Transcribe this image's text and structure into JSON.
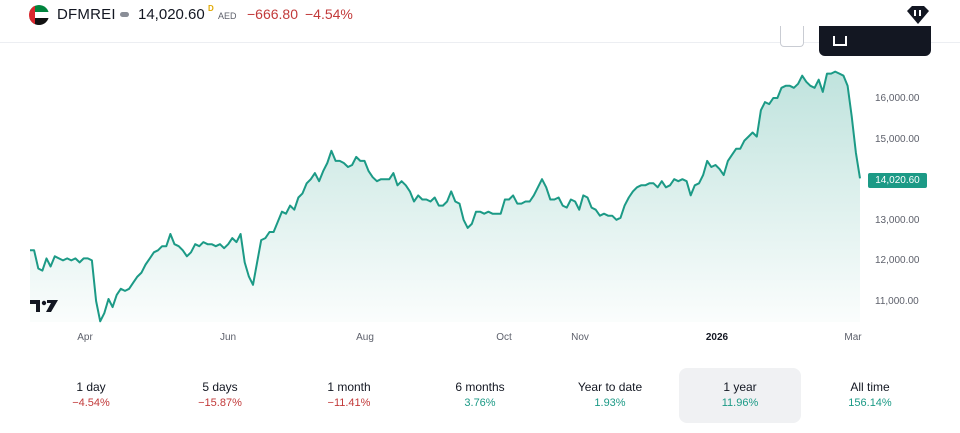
{
  "header": {
    "symbol": "DFMREI",
    "price": "14,020.60",
    "price_badge": "D",
    "currency": "AED",
    "change": "−666.80",
    "change_percent": "−4.54%"
  },
  "colors": {
    "line": "#1c9a86",
    "negative": "#c23a3a",
    "positive": "#1c9a86"
  },
  "chart_data": {
    "type": "area",
    "x_labels": [
      "Apr",
      "Jun",
      "Aug",
      "Oct",
      "Nov",
      "2026",
      "Mar"
    ],
    "y_ticks": [
      "16,000.00",
      "15,000.00",
      "14,000.00",
      "13,000.00",
      "12,000.00",
      "11,000.00"
    ],
    "last_value_label": "14,020.60",
    "ylim": [
      10500,
      16800
    ],
    "values": [
      12250,
      12250,
      11800,
      11750,
      12050,
      11850,
      12100,
      12050,
      12000,
      12050,
      12000,
      12050,
      11950,
      12050,
      12050,
      12000,
      11000,
      10500,
      10700,
      11050,
      10850,
      11150,
      11300,
      11250,
      11300,
      11450,
      11600,
      11700,
      11900,
      12050,
      12200,
      12250,
      12350,
      12350,
      12650,
      12400,
      12350,
      12250,
      12100,
      12200,
      12400,
      12350,
      12450,
      12400,
      12400,
      12350,
      12400,
      12300,
      12400,
      12550,
      12450,
      12650,
      11950,
      11600,
      11400,
      11950,
      12500,
      12550,
      12700,
      12700,
      12950,
      13200,
      13150,
      13350,
      13250,
      13550,
      13650,
      13900,
      14000,
      14150,
      13950,
      14200,
      14400,
      14700,
      14450,
      14450,
      14400,
      14300,
      14350,
      14550,
      14450,
      14450,
      14200,
      14050,
      13950,
      14000,
      14000,
      14000,
      14150,
      13850,
      13950,
      13850,
      13700,
      13450,
      13600,
      13500,
      13500,
      13450,
      13550,
      13350,
      13350,
      13450,
      13700,
      13450,
      13400,
      13000,
      12800,
      12900,
      13200,
      13200,
      13150,
      13200,
      13150,
      13150,
      13150,
      13500,
      13500,
      13600,
      13400,
      13400,
      13450,
      13450,
      13600,
      13800,
      14000,
      13800,
      13500,
      13500,
      13550,
      13350,
      13300,
      13500,
      13450,
      13250,
      13600,
      13550,
      13300,
      13250,
      13100,
      13150,
      13100,
      13100,
      13000,
      13050,
      13350,
      13550,
      13700,
      13800,
      13850,
      13850,
      13900,
      13900,
      13800,
      13950,
      13800,
      13850,
      14000,
      13950,
      14000,
      13950,
      13600,
      13850,
      13900,
      14100,
      14450,
      14300,
      14350,
      14250,
      14100,
      14450,
      14600,
      14750,
      14750,
      14950,
      15050,
      15150,
      15050,
      15700,
      15900,
      15850,
      16000,
      16000,
      16250,
      16300,
      16300,
      16250,
      16350,
      16550,
      16400,
      16300,
      16250,
      16450,
      16150,
      16600,
      16600,
      16650,
      16600,
      16550,
      16300,
      15550,
      14650,
      14020
    ]
  },
  "periods": [
    {
      "label": "1 day",
      "value": "−4.54%",
      "sign": "neg"
    },
    {
      "label": "5 days",
      "value": "−15.87%",
      "sign": "neg"
    },
    {
      "label": "1 month",
      "value": "−11.41%",
      "sign": "neg"
    },
    {
      "label": "6 months",
      "value": "3.76%",
      "sign": "pos"
    },
    {
      "label": "Year to date",
      "value": "1.93%",
      "sign": "pos"
    },
    {
      "label": "1 year",
      "value": "11.96%",
      "sign": "pos"
    },
    {
      "label": "All time",
      "value": "156.14%",
      "sign": "pos"
    }
  ],
  "active_period": "1 year"
}
